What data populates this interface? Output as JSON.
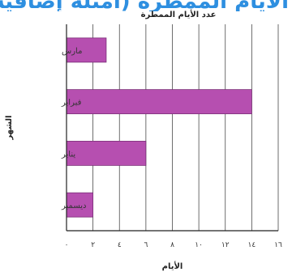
{
  "banner": {
    "text": "الأيام الممطرة (أمثلة إضافية)"
  },
  "chart_data": {
    "type": "bar",
    "orientation": "horizontal",
    "title": "عدد الأيام الممطرة",
    "xlabel": "الأيام",
    "ylabel": "الشهر",
    "categories": [
      "مارس",
      "فبراير",
      "يناير",
      "ديسمبر"
    ],
    "values": [
      3,
      14,
      6,
      2
    ],
    "xlim": [
      0,
      16
    ],
    "x_ticks": [
      0,
      2,
      4,
      6,
      8,
      10,
      12,
      14,
      16
    ],
    "x_tick_labels": [
      "٠",
      "٢",
      "٤",
      "٦",
      "٨",
      "١٠",
      "١٢",
      "١٤",
      "١٦"
    ],
    "grid": "vertical",
    "colors": {
      "bar_fill": "#b64fb0",
      "bar_stroke": "#7a2f77",
      "grid": "#4a4a4a",
      "axis": "#222222"
    }
  }
}
